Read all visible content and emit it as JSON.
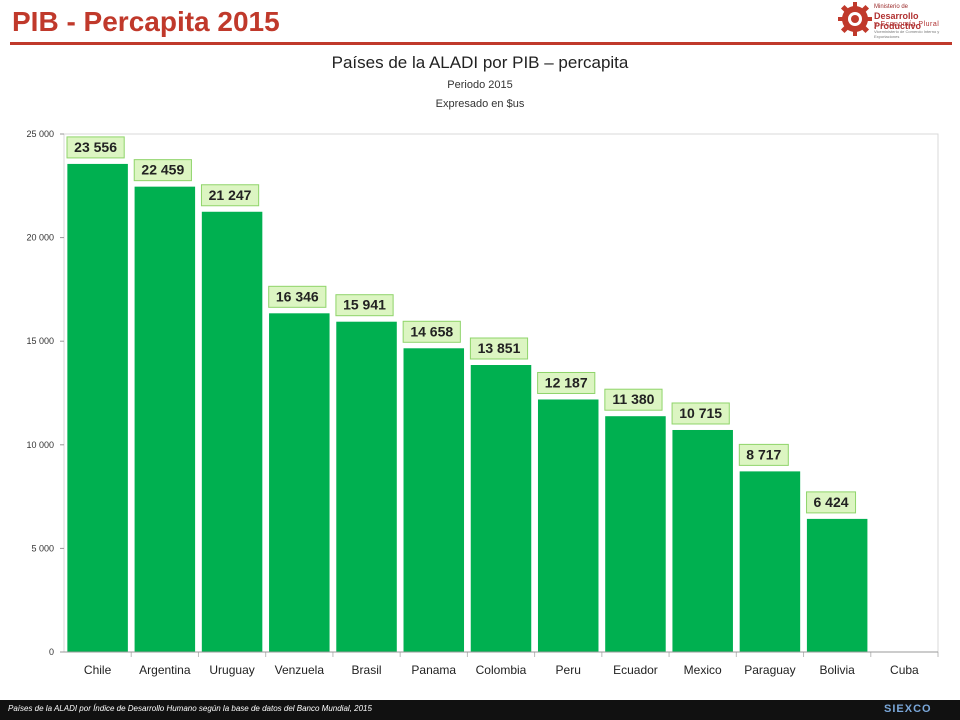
{
  "slide": {
    "title": "PIB - Percapita 2015",
    "logo": {
      "line1": "Ministerio de",
      "line2": "Desarrollo Productivo",
      "line3": "y Economía Plural",
      "line4": "Viceministerio de Comercio Interno y Exportaciones"
    },
    "footer_note": "Países de la ALADI por Índice de Desarrollo Humano según la base de datos del Banco Mundial, 2015",
    "footer_logo": "SIEXCO"
  },
  "colors": {
    "title_red": "#c0392b",
    "bar_green": "#00b050",
    "label_bg": "#dcf5c2",
    "label_border": "#8fd46a"
  },
  "chart_data": {
    "type": "bar",
    "title": "Países de la ALADI por PIB – percapita",
    "subtitle_1": "Periodo 2015",
    "subtitle_2": "Expresado en $us",
    "categories": [
      "Chile",
      "Argentina",
      "Uruguay",
      "Venzuela",
      "Brasil",
      "Panama",
      "Colombia",
      "Peru",
      "Ecuador",
      "Mexico",
      "Paraguay",
      "Bolivia",
      "Cuba"
    ],
    "values": [
      23556,
      22459,
      21247,
      16346,
      15941,
      14658,
      13851,
      12187,
      11380,
      10715,
      8717,
      6424,
      null
    ],
    "value_labels": [
      "23 556",
      "22 459",
      "21 247",
      "16 346",
      "15 941",
      "14 658",
      "13 851",
      "12 187",
      "11 380",
      "10 715",
      "8 717",
      "6 424",
      ""
    ],
    "ylim": [
      0,
      25000
    ],
    "yticks": [
      0,
      5000,
      10000,
      15000,
      20000,
      25000
    ],
    "ytick_labels": [
      "0",
      "5 000",
      "10 000",
      "15 000",
      "20 000",
      "25 000"
    ],
    "xlabel": "",
    "ylabel": "",
    "grid": false,
    "legend": "none"
  }
}
